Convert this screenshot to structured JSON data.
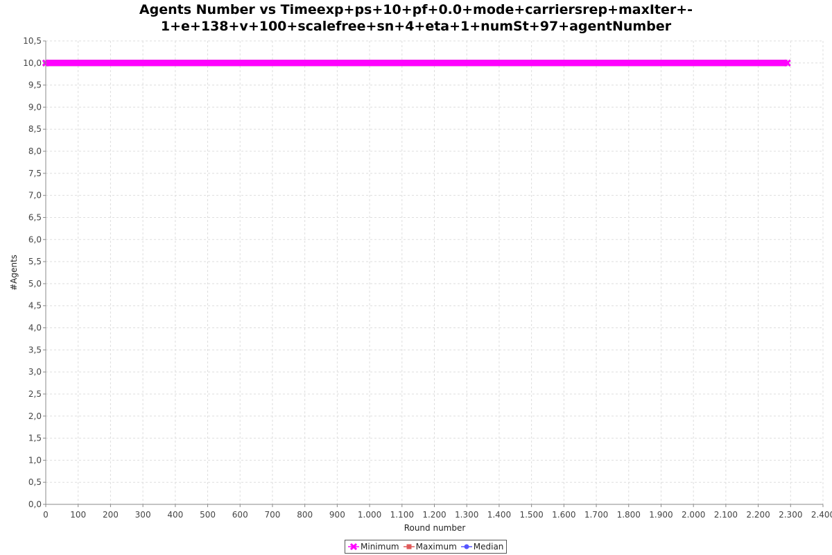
{
  "chart_data": {
    "type": "line",
    "title": "Agents Number vs Timeexp+ps+10+pf+0.0+mode+carriersrep+maxIter+-1+e+138+v+100+scalefree+sn+4+eta+1+numSt+97+agentNumber",
    "title_lines": [
      "Agents Number vs Timeexp+ps+10+pf+0.0+mode+carriersrep+maxIter+-",
      "1+e+138+v+100+scalefree+sn+4+eta+1+numSt+97+agentNumber"
    ],
    "xlabel": "Round number",
    "ylabel": "#Agents",
    "xlim": [
      0,
      2400
    ],
    "ylim": [
      0,
      10.5
    ],
    "x_ticks": [
      "0",
      "100",
      "200",
      "300",
      "400",
      "500",
      "600",
      "700",
      "800",
      "900",
      "1.000",
      "1.100",
      "1.200",
      "1.300",
      "1.400",
      "1.500",
      "1.600",
      "1.700",
      "1.800",
      "1.900",
      "2.000",
      "2.100",
      "2.200",
      "2.300",
      "2.400"
    ],
    "y_ticks": [
      "0,0",
      "0,5",
      "1,0",
      "1,5",
      "2,0",
      "2,5",
      "3,0",
      "3,5",
      "4,0",
      "4,5",
      "5,0",
      "5,5",
      "6,0",
      "6,5",
      "7,0",
      "7,5",
      "8,0",
      "8,5",
      "9,0",
      "9,5",
      "10,0",
      "10,5"
    ],
    "grid": true,
    "legend_position": "bottom",
    "x_range": [
      0,
      2290
    ],
    "series": [
      {
        "name": "Minimum",
        "color": "#ff00ff",
        "marker": "cross",
        "value": 10.0
      },
      {
        "name": "Maximum",
        "color": "#e05a5a",
        "marker": "square",
        "value": 10.0
      },
      {
        "name": "Median",
        "color": "#5555ff",
        "marker": "circle",
        "value": 10.0
      }
    ]
  }
}
